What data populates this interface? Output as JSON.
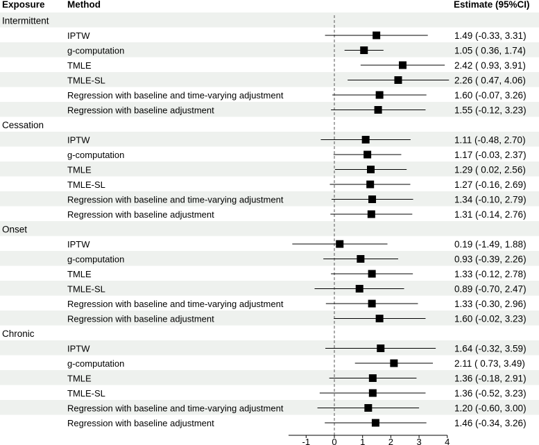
{
  "headers": {
    "exposure": "Exposure",
    "method": "Method",
    "estimate": "Estimate (95%CI)"
  },
  "colors": {
    "shade": "#eef1ee",
    "marker": "#000000",
    "line": "#000000",
    "refline": "#555555"
  },
  "chart_data": {
    "type": "forest",
    "title": "",
    "xlabel": "",
    "xlim": [
      -1.5,
      4
    ],
    "xticks": [
      -1,
      0,
      1,
      2,
      3,
      4
    ],
    "reference_line": 0,
    "groups": [
      {
        "name": "Intermittent",
        "rows": [
          {
            "method": "IPTW",
            "est": 1.49,
            "lo": -0.33,
            "hi": 3.31,
            "text": "1.49 (-0.33, 3.31)"
          },
          {
            "method": "g-computation",
            "est": 1.05,
            "lo": 0.36,
            "hi": 1.74,
            "text": "1.05 ( 0.36, 1.74)"
          },
          {
            "method": "TMLE",
            "est": 2.42,
            "lo": 0.93,
            "hi": 3.91,
            "text": "2.42 ( 0.93, 3.91)"
          },
          {
            "method": "TMLE-SL",
            "est": 2.26,
            "lo": 0.47,
            "hi": 4.06,
            "text": "2.26 ( 0.47, 4.06)"
          },
          {
            "method": "Regression with baseline and time-varying adjustment",
            "est": 1.6,
            "lo": -0.07,
            "hi": 3.26,
            "text": "1.60 (-0.07, 3.26)"
          },
          {
            "method": "Regression with baseline adjustment",
            "est": 1.55,
            "lo": -0.12,
            "hi": 3.23,
            "text": "1.55 (-0.12, 3.23)"
          }
        ]
      },
      {
        "name": "Cessation",
        "rows": [
          {
            "method": "IPTW",
            "est": 1.11,
            "lo": -0.48,
            "hi": 2.7,
            "text": "1.11 (-0.48, 2.70)"
          },
          {
            "method": "g-computation",
            "est": 1.17,
            "lo": -0.03,
            "hi": 2.37,
            "text": "1.17 (-0.03, 2.37)"
          },
          {
            "method": "TMLE",
            "est": 1.29,
            "lo": 0.02,
            "hi": 2.56,
            "text": "1.29 ( 0.02, 2.56)"
          },
          {
            "method": "TMLE-SL",
            "est": 1.27,
            "lo": -0.16,
            "hi": 2.69,
            "text": "1.27 (-0.16, 2.69)"
          },
          {
            "method": "Regression with baseline and time-varying adjustment",
            "est": 1.34,
            "lo": -0.1,
            "hi": 2.79,
            "text": "1.34 (-0.10, 2.79)"
          },
          {
            "method": "Regression with baseline adjustment",
            "est": 1.31,
            "lo": -0.14,
            "hi": 2.76,
            "text": "1.31 (-0.14, 2.76)"
          }
        ]
      },
      {
        "name": "Onset",
        "rows": [
          {
            "method": "IPTW",
            "est": 0.19,
            "lo": -1.49,
            "hi": 1.88,
            "text": "0.19 (-1.49, 1.88)"
          },
          {
            "method": "g-computation",
            "est": 0.93,
            "lo": -0.39,
            "hi": 2.26,
            "text": "0.93 (-0.39, 2.26)"
          },
          {
            "method": "TMLE",
            "est": 1.33,
            "lo": -0.12,
            "hi": 2.78,
            "text": "1.33 (-0.12, 2.78)"
          },
          {
            "method": "TMLE-SL",
            "est": 0.89,
            "lo": -0.7,
            "hi": 2.47,
            "text": "0.89 (-0.70, 2.47)"
          },
          {
            "method": "Regression with baseline and time-varying adjustment",
            "est": 1.33,
            "lo": -0.3,
            "hi": 2.96,
            "text": "1.33 (-0.30, 2.96)"
          },
          {
            "method": "Regression with baseline adjustment",
            "est": 1.6,
            "lo": -0.02,
            "hi": 3.23,
            "text": "1.60 (-0.02, 3.23)"
          }
        ]
      },
      {
        "name": "Chronic",
        "rows": [
          {
            "method": "IPTW",
            "est": 1.64,
            "lo": -0.32,
            "hi": 3.59,
            "text": "1.64 (-0.32, 3.59)"
          },
          {
            "method": "g-computation",
            "est": 2.11,
            "lo": 0.73,
            "hi": 3.49,
            "text": "2.11 ( 0.73, 3.49)"
          },
          {
            "method": "TMLE",
            "est": 1.36,
            "lo": -0.18,
            "hi": 2.91,
            "text": "1.36 (-0.18, 2.91)"
          },
          {
            "method": "TMLE-SL",
            "est": 1.36,
            "lo": -0.52,
            "hi": 3.23,
            "text": "1.36 (-0.52, 3.23)"
          },
          {
            "method": "Regression with baseline and time-varying adjustment",
            "est": 1.2,
            "lo": -0.6,
            "hi": 3.0,
            "text": "1.20 (-0.60, 3.00)"
          },
          {
            "method": "Regression with baseline adjustment",
            "est": 1.46,
            "lo": -0.34,
            "hi": 3.26,
            "text": "1.46 (-0.34, 3.26)"
          }
        ]
      }
    ]
  }
}
